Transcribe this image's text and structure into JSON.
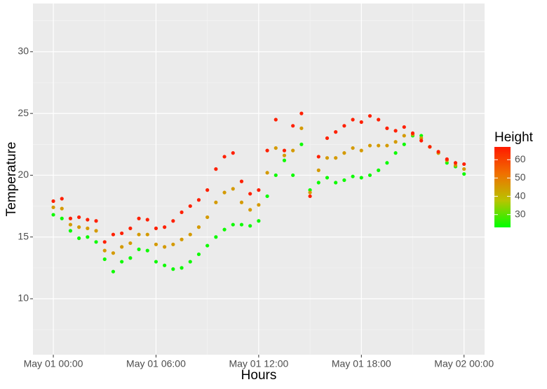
{
  "chart_data": {
    "type": "scatter",
    "x_label": "Hours",
    "y_label": "Temperature",
    "x": [
      0,
      0.5,
      1,
      1.5,
      2,
      2.5,
      3,
      3.5,
      4,
      4.5,
      5,
      5.5,
      6,
      6.5,
      7,
      7.5,
      8,
      8.5,
      9,
      9.5,
      10,
      10.5,
      11,
      11.5,
      12,
      12.5,
      13,
      13.5,
      14,
      14.5,
      15,
      15.5,
      16,
      16.5,
      17,
      17.5,
      18,
      18.5,
      19,
      19.5,
      20,
      20.5,
      21,
      21.5,
      22,
      22.5,
      23,
      23.5,
      24
    ],
    "series": [
      {
        "height": 24,
        "values": [
          16.8,
          16.5,
          15.5,
          14.9,
          15.0,
          14.6,
          13.2,
          12.2,
          13.0,
          13.3,
          14.0,
          13.9,
          13.0,
          12.7,
          12.4,
          12.5,
          13.0,
          13.6,
          14.3,
          15.0,
          15.6,
          16.0,
          16.0,
          15.9,
          16.3,
          18.3,
          20.0,
          21.2,
          20.0,
          22.5,
          18.8,
          19.4,
          19.8,
          19.4,
          19.6,
          19.9,
          19.8,
          20.0,
          20.4,
          21.0,
          21.8,
          22.5,
          23.2,
          23.2,
          22.3,
          21.8,
          21.0,
          20.7,
          20.1
        ]
      },
      {
        "height": 45,
        "values": [
          17.4,
          17.3,
          16.0,
          15.8,
          15.7,
          15.5,
          13.9,
          13.7,
          14.2,
          14.5,
          15.2,
          15.2,
          14.4,
          14.2,
          14.4,
          14.8,
          15.2,
          15.8,
          16.6,
          17.8,
          18.6,
          18.9,
          17.8,
          17.2,
          17.6,
          20.2,
          22.2,
          21.6,
          22.0,
          23.8,
          18.6,
          20.4,
          21.4,
          21.4,
          21.8,
          22.2,
          22.0,
          22.4,
          22.4,
          22.4,
          22.7,
          23.2,
          23.3,
          23.0,
          22.3,
          21.8,
          21.2,
          20.8,
          20.5
        ]
      },
      {
        "height": 66,
        "values": [
          17.9,
          18.1,
          16.5,
          16.6,
          16.4,
          16.3,
          14.6,
          15.2,
          15.3,
          15.7,
          16.5,
          16.4,
          15.7,
          15.8,
          16.3,
          17.0,
          17.5,
          18.0,
          18.8,
          20.5,
          21.5,
          21.8,
          19.5,
          18.5,
          18.8,
          22.0,
          24.5,
          22.0,
          24.0,
          25.0,
          18.3,
          21.5,
          23.0,
          23.5,
          24.0,
          24.5,
          24.3,
          24.8,
          24.5,
          23.8,
          23.6,
          23.9,
          23.4,
          22.8,
          22.3,
          21.9,
          21.3,
          21.0,
          20.9
        ]
      }
    ],
    "xlim": [
      -1.19,
      25.2
    ],
    "xticks": [
      {
        "value": 0,
        "label": "May 01 00:00"
      },
      {
        "value": 6,
        "label": "May 01 06:00"
      },
      {
        "value": 12,
        "label": "May 01 12:00"
      },
      {
        "value": 18,
        "label": "May 01 18:00"
      },
      {
        "value": 24,
        "label": "May 02 00:00"
      }
    ],
    "x_minor_ticks": [
      3,
      9,
      15,
      21
    ],
    "ylim": [
      5.47,
      33.9
    ],
    "yticks": [
      10,
      15,
      20,
      25,
      30
    ],
    "y_minor_ticks": [
      7.5,
      12.5,
      17.5,
      22.5,
      27.5,
      32.5
    ],
    "grid": true,
    "colorbar": {
      "title": "Height",
      "lim": [
        23,
        67
      ],
      "ticks": [
        30,
        40,
        50,
        60
      ],
      "colors": [
        "#00ff00",
        "#b8c400",
        "#f07000",
        "#ff1a00"
      ]
    }
  }
}
